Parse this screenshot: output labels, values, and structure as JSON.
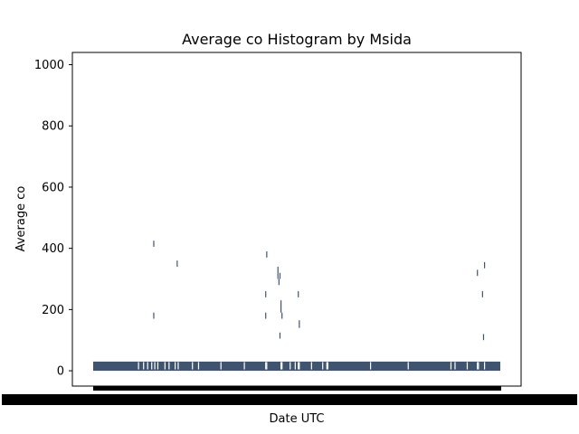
{
  "chart_data": {
    "type": "bar",
    "title": "Average co Histogram by Msida",
    "xlabel": "Date UTC",
    "ylabel": "Average co",
    "ylim": [
      -50,
      1040
    ],
    "yticks": [
      0,
      200,
      400,
      600,
      800,
      1000
    ],
    "bar_color": "#3f5470",
    "category_count": 400,
    "x_tick_labels_overlapping": true,
    "baseline_value": 30,
    "spikes": [
      {
        "index": 59,
        "low": 405,
        "high": 425
      },
      {
        "index": 59,
        "low": 170,
        "high": 190
      },
      {
        "index": 82,
        "low": 340,
        "high": 360
      },
      {
        "index": 170,
        "low": 370,
        "high": 390
      },
      {
        "index": 169,
        "low": 240,
        "high": 260
      },
      {
        "index": 169,
        "low": 170,
        "high": 190
      },
      {
        "index": 181,
        "low": 300,
        "high": 340
      },
      {
        "index": 182,
        "low": 280,
        "high": 300
      },
      {
        "index": 183,
        "low": 300,
        "high": 320
      },
      {
        "index": 184,
        "low": 190,
        "high": 230
      },
      {
        "index": 185,
        "low": 170,
        "high": 190
      },
      {
        "index": 183,
        "low": 105,
        "high": 125
      },
      {
        "index": 201,
        "low": 240,
        "high": 260
      },
      {
        "index": 202,
        "low": 140,
        "high": 165
      },
      {
        "index": 377,
        "low": 310,
        "high": 330
      },
      {
        "index": 382,
        "low": 240,
        "high": 260
      },
      {
        "index": 384,
        "low": 335,
        "high": 355
      },
      {
        "index": 383,
        "low": 100,
        "high": 120
      }
    ],
    "gaps": [
      44,
      49,
      53,
      57,
      60,
      63,
      70,
      74,
      80,
      83,
      97,
      103,
      125,
      148,
      169,
      170,
      184,
      185,
      193,
      198,
      201,
      202,
      214,
      225,
      229,
      230,
      272,
      309,
      351,
      355,
      367,
      377,
      378,
      384
    ]
  }
}
